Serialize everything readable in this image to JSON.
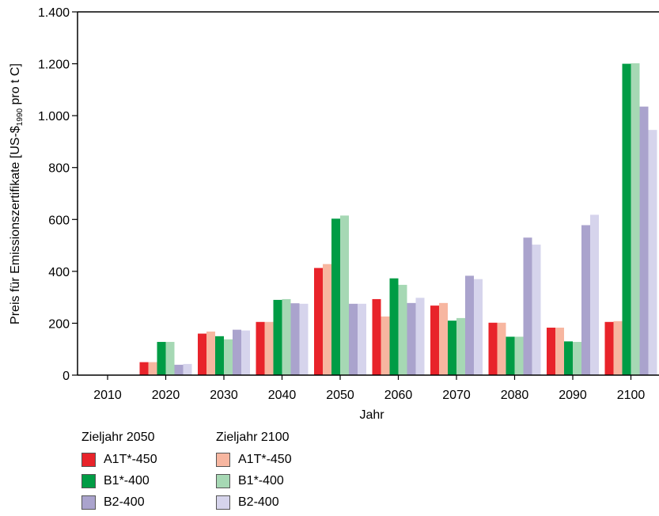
{
  "chart_data": {
    "type": "bar",
    "xlabel": "Jahr",
    "ylabel_prefix": "Preis für Emissionszertifikate [US-$",
    "ylabel_subscript": "1990",
    "ylabel_suffix": " pro t C]",
    "ylim": [
      0,
      1400
    ],
    "yticks": [
      {
        "value": 0,
        "label": "0"
      },
      {
        "value": 200,
        "label": "200"
      },
      {
        "value": 400,
        "label": "400"
      },
      {
        "value": 600,
        "label": "600"
      },
      {
        "value": 800,
        "label": "800"
      },
      {
        "value": 1000,
        "label": "1.000"
      },
      {
        "value": 1200,
        "label": "1.200"
      },
      {
        "value": 1400,
        "label": "1.400"
      }
    ],
    "categories": [
      "2010",
      "2020",
      "2030",
      "2040",
      "2050",
      "2060",
      "2070",
      "2080",
      "2090",
      "2100"
    ],
    "grid": false,
    "legend_position": "bottom-left",
    "series": [
      {
        "name": "A1T*-450",
        "group": "Zieljahr 2050",
        "color": "#e8232a",
        "values": [
          0,
          50,
          160,
          205,
          413,
          293,
          268,
          202,
          183,
          205
        ]
      },
      {
        "name": "A1T*-450",
        "group": "Zieljahr 2100",
        "color": "#f7b6a0",
        "values": [
          0,
          50,
          168,
          205,
          428,
          226,
          278,
          202,
          183,
          208
        ]
      },
      {
        "name": "B1*-400",
        "group": "Zieljahr 2050",
        "color": "#009c45",
        "values": [
          0,
          128,
          150,
          290,
          603,
          373,
          210,
          148,
          130,
          1200
        ]
      },
      {
        "name": "B1*-400",
        "group": "Zieljahr 2100",
        "color": "#a6d8b4",
        "values": [
          0,
          128,
          138,
          293,
          615,
          348,
          220,
          148,
          128,
          1202
        ]
      },
      {
        "name": "B2-400",
        "group": "Zieljahr 2050",
        "color": "#aaa3cd",
        "values": [
          0,
          40,
          175,
          277,
          275,
          278,
          383,
          530,
          578,
          1035
        ]
      },
      {
        "name": "B2-400",
        "group": "Zieljahr 2100",
        "color": "#d6d4ec",
        "values": [
          0,
          43,
          172,
          275,
          275,
          298,
          370,
          503,
          618,
          945
        ]
      }
    ]
  },
  "legend": {
    "groups": [
      {
        "title": "Zieljahr 2050",
        "entries": [
          {
            "label": "A1T*-450",
            "color": "#e8232a"
          },
          {
            "label": "B1*-400",
            "color": "#009c45"
          },
          {
            "label": "B2-400",
            "color": "#aaa3cd"
          }
        ]
      },
      {
        "title": "Zieljahr 2100",
        "entries": [
          {
            "label": "A1T*-450",
            "color": "#f7b6a0"
          },
          {
            "label": "B1*-400",
            "color": "#a6d8b4"
          },
          {
            "label": "B2-400",
            "color": "#d6d4ec"
          }
        ]
      }
    ]
  }
}
